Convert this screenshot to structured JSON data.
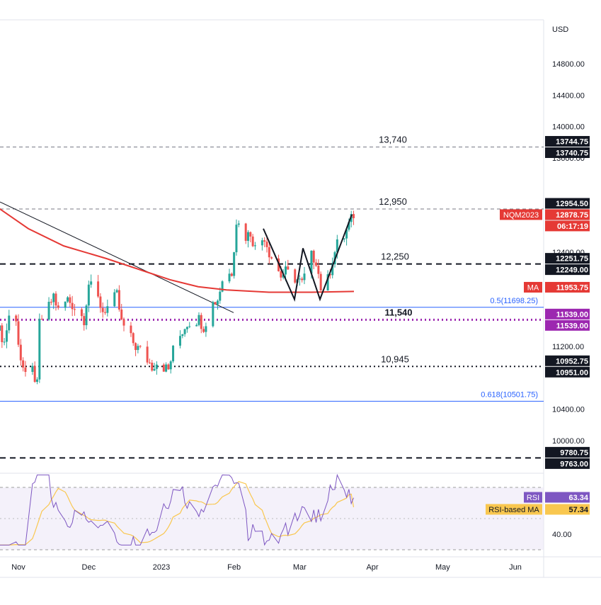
{
  "chart_data": {
    "type": "candlestick",
    "symbol": "NQM2023",
    "currency": "USD",
    "price_axis_ticks": [
      "14800.00",
      "14400.00",
      "14000.00",
      "13600.00",
      "12400.00",
      "11200.00",
      "10400.00",
      "10000.00"
    ],
    "time_axis_ticks": [
      {
        "label": "Nov",
        "date": "2022-11-01"
      },
      {
        "label": "Dec",
        "date": "2022-12-01"
      },
      {
        "label": "2023",
        "date": "2023-01-01"
      },
      {
        "label": "Feb",
        "date": "2023-02-01"
      },
      {
        "label": "Mar",
        "date": "2023-03-01"
      },
      {
        "label": "Apr",
        "date": "2023-04-01"
      },
      {
        "label": "May",
        "date": "2023-05-01"
      },
      {
        "label": "Jun",
        "date": "2023-06-01"
      }
    ],
    "ohlc_close_path": [
      [
        "2022-10-24",
        11400
      ],
      [
        "2022-10-26",
        11250
      ],
      [
        "2022-10-28",
        11600
      ],
      [
        "2022-10-31",
        11500
      ],
      [
        "2022-11-02",
        11050
      ],
      [
        "2022-11-04",
        10800
      ],
      [
        "2022-11-07",
        10900
      ],
      [
        "2022-11-09",
        10700
      ],
      [
        "2022-11-10",
        11500
      ],
      [
        "2022-11-14",
        11700
      ],
      [
        "2022-11-16",
        11850
      ],
      [
        "2022-11-18",
        11650
      ],
      [
        "2022-11-22",
        11800
      ],
      [
        "2022-11-25",
        11700
      ],
      [
        "2022-11-29",
        11550
      ],
      [
        "2022-12-01",
        12000
      ],
      [
        "2022-12-05",
        11800
      ],
      [
        "2022-12-07",
        11650
      ],
      [
        "2022-12-09",
        11700
      ],
      [
        "2022-12-13",
        11850
      ],
      [
        "2022-12-15",
        11500
      ],
      [
        "2022-12-19",
        11300
      ],
      [
        "2022-12-21",
        11200
      ],
      [
        "2022-12-23",
        11150
      ],
      [
        "2022-12-28",
        10950
      ],
      [
        "2022-12-30",
        11000
      ],
      [
        "2023-01-04",
        10900
      ],
      [
        "2023-01-06",
        11150
      ],
      [
        "2023-01-10",
        11400
      ],
      [
        "2023-01-12",
        11500
      ],
      [
        "2023-01-17",
        11550
      ],
      [
        "2023-01-19",
        11450
      ],
      [
        "2023-01-23",
        11750
      ],
      [
        "2023-01-25",
        11800
      ],
      [
        "2023-01-27",
        12050
      ],
      [
        "2023-01-31",
        12150
      ],
      [
        "2023-02-02",
        12800
      ],
      [
        "2023-02-06",
        12600
      ],
      [
        "2023-02-08",
        12650
      ],
      [
        "2023-02-10",
        12450
      ],
      [
        "2023-02-14",
        12600
      ],
      [
        "2023-02-16",
        12400
      ],
      [
        "2023-02-21",
        12100
      ],
      [
        "2023-02-23",
        12150
      ],
      [
        "2023-02-28",
        12050
      ],
      [
        "2023-03-02",
        12000
      ],
      [
        "2023-03-06",
        12350
      ],
      [
        "2023-03-08",
        12300
      ],
      [
        "2023-03-10",
        11950
      ],
      [
        "2023-03-13",
        12050
      ],
      [
        "2023-03-15",
        12300
      ],
      [
        "2023-03-17",
        12500
      ],
      [
        "2023-03-20",
        12600
      ],
      [
        "2023-03-22",
        12750
      ],
      [
        "2023-03-24",
        12880
      ]
    ],
    "last_price": {
      "label": "NQM2023",
      "value": "12878.75",
      "countdown": "06:17:19"
    },
    "moving_average": {
      "label": "MA",
      "value": "11953.75",
      "color": "#e53935"
    },
    "levels": [
      {
        "label": "13,740",
        "value": 13740,
        "style": "dashed-gray",
        "tags": [
          "13744.75",
          "13740.75"
        ]
      },
      {
        "label": "12,950",
        "value": 12950,
        "style": "dashed-gray",
        "tags": [
          "12954.50",
          "12949.75"
        ]
      },
      {
        "label": "12,250",
        "value": 12250,
        "style": "dashed-black",
        "tags": [
          "12251.75",
          "12249.00"
        ]
      },
      {
        "label": "11,540",
        "value": 11540,
        "style": "dotted-purple",
        "color": "#9c27b0",
        "tags": [
          "11539.00",
          "11539.00"
        ]
      },
      {
        "label": "10,945",
        "value": 10945,
        "style": "dotted-black",
        "tags": [
          "10952.75",
          "10951.00"
        ]
      },
      {
        "label": "",
        "value": 9780,
        "style": "dashed-black",
        "tags": [
          "9780.75",
          "9763.00"
        ]
      }
    ],
    "fibonacci": [
      {
        "label": "0.5(11698.25)",
        "value": 11698.25,
        "color": "#2962ff"
      },
      {
        "label": "0.618(10501.75)",
        "value": 10501.75,
        "color": "#2962ff"
      }
    ],
    "pattern": "W (double bottom)",
    "rsi": {
      "label": "RSI",
      "value": "63.34",
      "ma_label": "RSI-based MA",
      "ma_value": "57.34",
      "tick": "40.00",
      "upper": 70,
      "middle": 50,
      "lower": 30,
      "line_color": "#7e57c2",
      "ma_color": "#f9c74f"
    },
    "colors": {
      "up": "#26a69a",
      "down": "#ef5350",
      "tag_black": "#131722",
      "tag_red": "#e53935",
      "tag_purple": "#9c27b0",
      "rsi_bg": "#ede7f6"
    }
  }
}
